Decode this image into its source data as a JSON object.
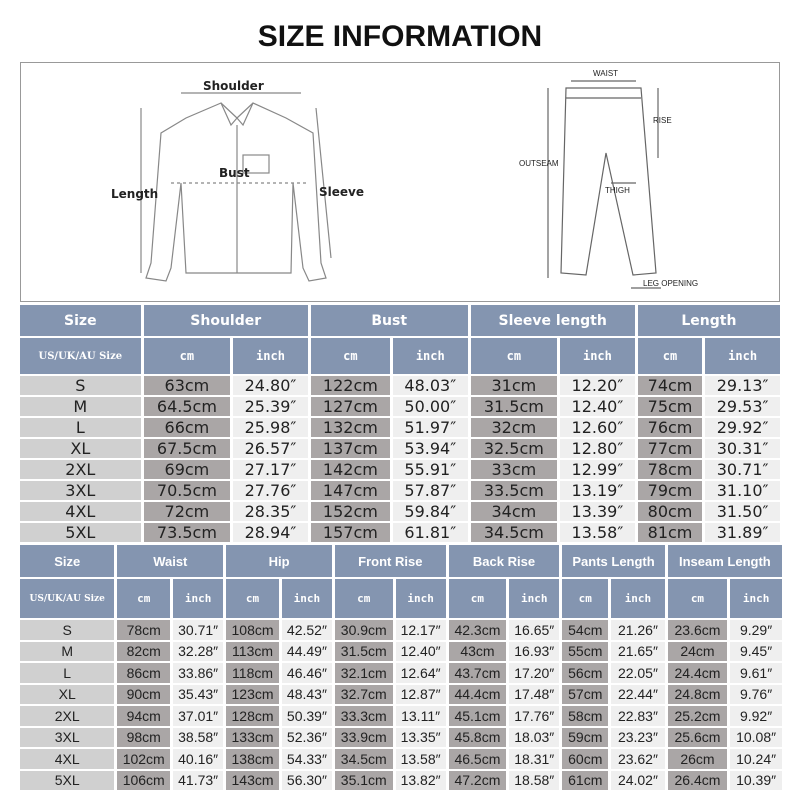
{
  "title": "SIZE INFORMATION",
  "diagram": {
    "shirt_labels": {
      "shoulder": "Shoulder",
      "bust": "Bust",
      "length": "Length",
      "sleeve": "Sleeve"
    },
    "pants_labels": {
      "waist": "WAIST",
      "rise": "RISE",
      "outseam": "OUTSEAM",
      "thigh": "THIGH",
      "leg_opening": "LEG OPENING"
    }
  },
  "colors": {
    "header": "#8495b0",
    "cm_cell": "#aaa6a6",
    "inch_cell": "#efefef",
    "size_cell": "#d0d0d0"
  },
  "top_table": {
    "size_header": "Size",
    "sub_size_header": "US/UK/AU Size",
    "unit_cm": "cm",
    "unit_inch": "inch",
    "groups": [
      "Shoulder",
      "Bust",
      "Sleeve length",
      "Length"
    ],
    "rows": [
      [
        "S",
        "63cm",
        "24.80″",
        "122cm",
        "48.03″",
        "31cm",
        "12.20″",
        "74cm",
        "29.13″"
      ],
      [
        "M",
        "64.5cm",
        "25.39″",
        "127cm",
        "50.00″",
        "31.5cm",
        "12.40″",
        "75cm",
        "29.53″"
      ],
      [
        "L",
        "66cm",
        "25.98″",
        "132cm",
        "51.97″",
        "32cm",
        "12.60″",
        "76cm",
        "29.92″"
      ],
      [
        "XL",
        "67.5cm",
        "26.57″",
        "137cm",
        "53.94″",
        "32.5cm",
        "12.80″",
        "77cm",
        "30.31″"
      ],
      [
        "2XL",
        "69cm",
        "27.17″",
        "142cm",
        "55.91″",
        "33cm",
        "12.99″",
        "78cm",
        "30.71″"
      ],
      [
        "3XL",
        "70.5cm",
        "27.76″",
        "147cm",
        "57.87″",
        "33.5cm",
        "13.19″",
        "79cm",
        "31.10″"
      ],
      [
        "4XL",
        "72cm",
        "28.35″",
        "152cm",
        "59.84″",
        "34cm",
        "13.39″",
        "80cm",
        "31.50″"
      ],
      [
        "5XL",
        "73.5cm",
        "28.94″",
        "157cm",
        "61.81″",
        "34.5cm",
        "13.58″",
        "81cm",
        "31.89″"
      ]
    ]
  },
  "bottom_table": {
    "size_header": "Size",
    "sub_size_header": "US/UK/AU Size",
    "unit_cm": "cm",
    "unit_inch": "inch",
    "groups": [
      "Waist",
      "Hip",
      "Front Rise",
      "Back Rise",
      "Pants Length",
      "Inseam Length"
    ],
    "rows": [
      [
        "S",
        "78cm",
        "30.71″",
        "108cm",
        "42.52″",
        "30.9cm",
        "12.17″",
        "42.3cm",
        "16.65″",
        "54cm",
        "21.26″",
        "23.6cm",
        "9.29″"
      ],
      [
        "M",
        "82cm",
        "32.28″",
        "113cm",
        "44.49″",
        "31.5cm",
        "12.40″",
        "43cm",
        "16.93″",
        "55cm",
        "21.65″",
        "24cm",
        "9.45″"
      ],
      [
        "L",
        "86cm",
        "33.86″",
        "118cm",
        "46.46″",
        "32.1cm",
        "12.64″",
        "43.7cm",
        "17.20″",
        "56cm",
        "22.05″",
        "24.4cm",
        "9.61″"
      ],
      [
        "XL",
        "90cm",
        "35.43″",
        "123cm",
        "48.43″",
        "32.7cm",
        "12.87″",
        "44.4cm",
        "17.48″",
        "57cm",
        "22.44″",
        "24.8cm",
        "9.76″"
      ],
      [
        "2XL",
        "94cm",
        "37.01″",
        "128cm",
        "50.39″",
        "33.3cm",
        "13.11″",
        "45.1cm",
        "17.76″",
        "58cm",
        "22.83″",
        "25.2cm",
        "9.92″"
      ],
      [
        "3XL",
        "98cm",
        "38.58″",
        "133cm",
        "52.36″",
        "33.9cm",
        "13.35″",
        "45.8cm",
        "18.03″",
        "59cm",
        "23.23″",
        "25.6cm",
        "10.08″"
      ],
      [
        "4XL",
        "102cm",
        "40.16″",
        "138cm",
        "54.33″",
        "34.5cm",
        "13.58″",
        "46.5cm",
        "18.31″",
        "60cm",
        "23.62″",
        "26cm",
        "10.24″"
      ],
      [
        "5XL",
        "106cm",
        "41.73″",
        "143cm",
        "56.30″",
        "35.1cm",
        "13.82″",
        "47.2cm",
        "18.58″",
        "61cm",
        "24.02″",
        "26.4cm",
        "10.39″"
      ]
    ]
  }
}
